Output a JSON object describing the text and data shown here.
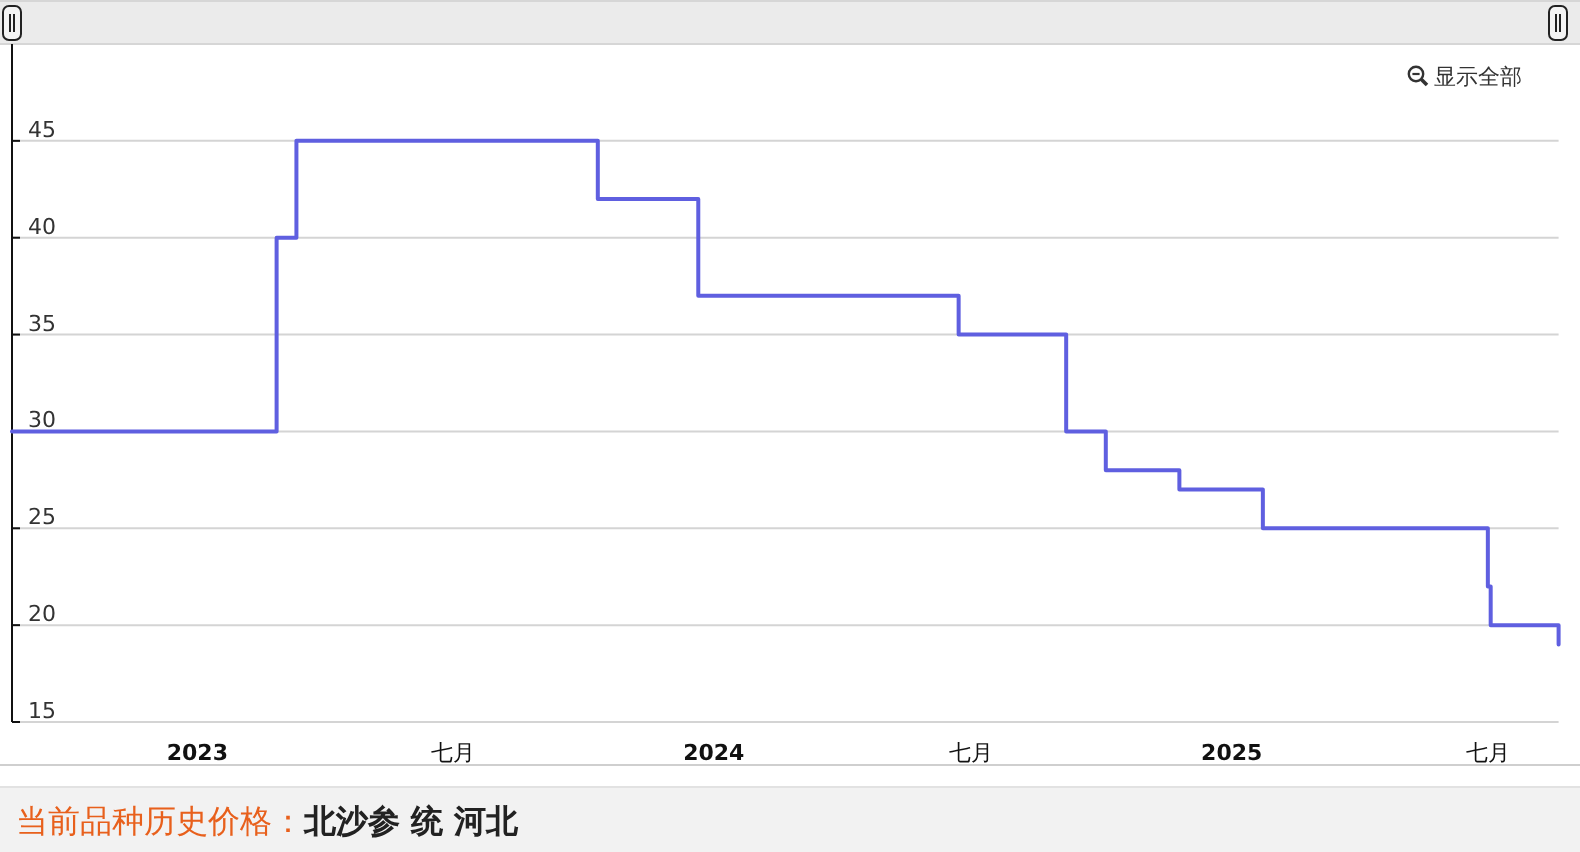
{
  "chart_data": {
    "type": "step",
    "title": "当前品种历史价格：",
    "subtitle": "北沙参 统 河北",
    "annotations": [
      "显示全部"
    ],
    "x": [
      "2022-08-23",
      "2023-02-26",
      "2023-03-12",
      "2023-10-11",
      "2023-12-21",
      "2024-06-22",
      "2024-09-06",
      "2024-10-04",
      "2024-11-25",
      "2025-01-23",
      "2025-07-01",
      "2025-07-03",
      "2025-08-20"
    ],
    "series": [
      {
        "color": "#5f5fe0",
        "values": [
          30,
          40,
          45,
          42,
          37,
          35,
          30,
          28,
          27,
          25,
          22,
          20,
          19
        ]
      }
    ],
    "xlim": [
      "2022-08-23",
      "2025-08-20"
    ],
    "xticks": [
      {
        "value": "2023-01-01",
        "label": "2023"
      },
      {
        "value": "2023-07-01",
        "label": "七月"
      },
      {
        "value": "2024-01-01",
        "label": "2024"
      },
      {
        "value": "2024-07-01",
        "label": "七月"
      },
      {
        "value": "2025-01-01",
        "label": "2025"
      },
      {
        "value": "2025-07-01",
        "label": "七月"
      }
    ],
    "ylim": [
      15,
      50
    ],
    "yticks": [
      15,
      20,
      25,
      30,
      35,
      40,
      45
    ],
    "grid": "y"
  }
}
